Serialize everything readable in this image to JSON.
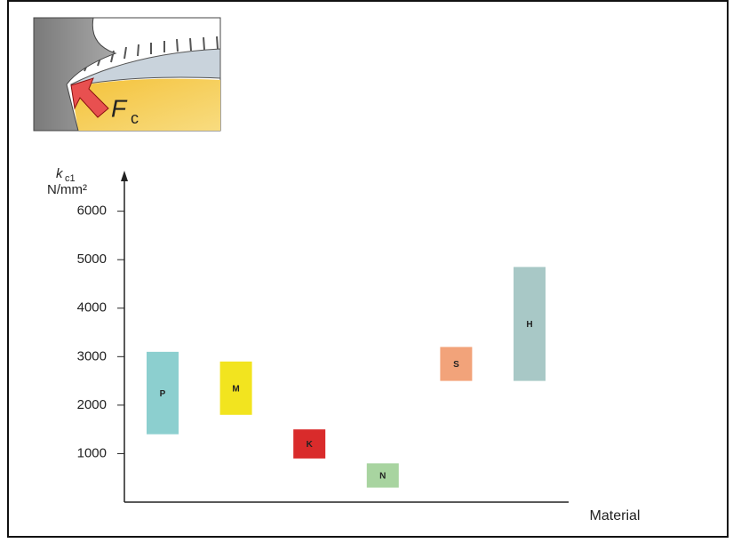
{
  "chart_data": {
    "type": "floating-bar",
    "illustration_label": {
      "symbol": "F",
      "subscript": "c"
    },
    "y_axis_label": {
      "symbol": "k",
      "subscript": "c1",
      "unit": "N/mm²"
    },
    "x_axis_label": "Material",
    "categories": [
      "P",
      "M",
      "K",
      "N",
      "S",
      "H"
    ],
    "low": [
      1400,
      1800,
      900,
      300,
      2500,
      2500
    ],
    "high": [
      3100,
      2900,
      1500,
      800,
      3200,
      4850
    ],
    "colors": [
      "#8ccfcf",
      "#f2e41f",
      "#d92b2b",
      "#a8d4a0",
      "#f2a37a",
      "#a8c8c6"
    ],
    "ylim": [
      0,
      6800
    ],
    "yticks": [
      1000,
      2000,
      3000,
      4000,
      5000,
      6000
    ]
  }
}
